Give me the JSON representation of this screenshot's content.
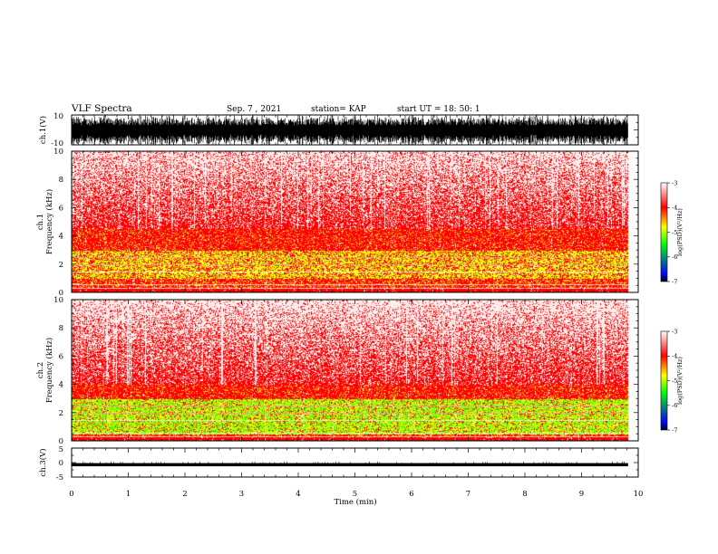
{
  "header": {
    "title": "VLF Spectra",
    "date": "Sep. 7 , 2021",
    "station": "station= KAP",
    "start": "start  UT =   18: 50: 1"
  },
  "chart_data": [
    {
      "type": "line",
      "name": "waveform-ch1",
      "ylabel": "ch.1(V)",
      "ylim": [
        -10,
        10
      ],
      "yticks": [
        "10",
        "-10"
      ],
      "xlim": [
        0,
        10
      ],
      "data_extent_min": 9.82
    },
    {
      "type": "heatmap",
      "name": "spectrogram-ch1",
      "ylabel_top": "ch.1",
      "ylabel": "Frequency  (kHz)",
      "ylim": [
        0,
        10
      ],
      "yticks": [
        "0",
        "2",
        "4",
        "6",
        "8",
        "10"
      ],
      "xlim": [
        0,
        10
      ],
      "data_extent_min": 9.82,
      "colorbar": {
        "label": "log(PSD)(V²/Hz)",
        "range": [
          -7,
          -3
        ],
        "ticks": [
          "-3",
          "-4",
          "-5",
          "-6",
          "-7"
        ],
        "colormap": [
          "#000000",
          "#0000ff",
          "#00ff00",
          "#ffff00",
          "#ff0000",
          "#ffffff"
        ]
      },
      "profile": {
        "yellow_band_khz": [
          1.0,
          3.0
        ],
        "green_level": 0.1,
        "red_top_khz": 4.5
      }
    },
    {
      "type": "heatmap",
      "name": "spectrogram-ch2",
      "ylabel_top": "ch.2",
      "ylabel": "Frequency  (kHz)",
      "ylim": [
        0,
        10
      ],
      "yticks": [
        "0",
        "2",
        "4",
        "6",
        "8",
        "10"
      ],
      "xlim": [
        0,
        10
      ],
      "data_extent_min": 9.82,
      "colorbar": {
        "label": "log(PSD)(V²/Hz)",
        "range": [
          -7,
          -3
        ],
        "ticks": [
          "-3",
          "-4",
          "-5",
          "-6",
          "-7"
        ],
        "colormap": [
          "#000000",
          "#0000ff",
          "#00ff00",
          "#ffff00",
          "#ff0000",
          "#ffffff"
        ]
      },
      "profile": {
        "yellow_band_khz": [
          0.5,
          3.0
        ],
        "green_level": 0.55,
        "red_top_khz": 4.0
      }
    },
    {
      "type": "line",
      "name": "waveform-ch3",
      "ylabel": "ch.3(V)",
      "ylim": [
        -5,
        5
      ],
      "yticks": [
        "5",
        "0",
        "-5"
      ],
      "xlim": [
        0,
        10
      ],
      "data_extent_min": 9.82,
      "trace_band": [
        -1.3,
        -0.2
      ]
    }
  ],
  "xaxis": {
    "label": "Time  (min)",
    "ticks": [
      "0",
      "1",
      "2",
      "3",
      "4",
      "5",
      "6",
      "7",
      "8",
      "9",
      "10"
    ]
  }
}
